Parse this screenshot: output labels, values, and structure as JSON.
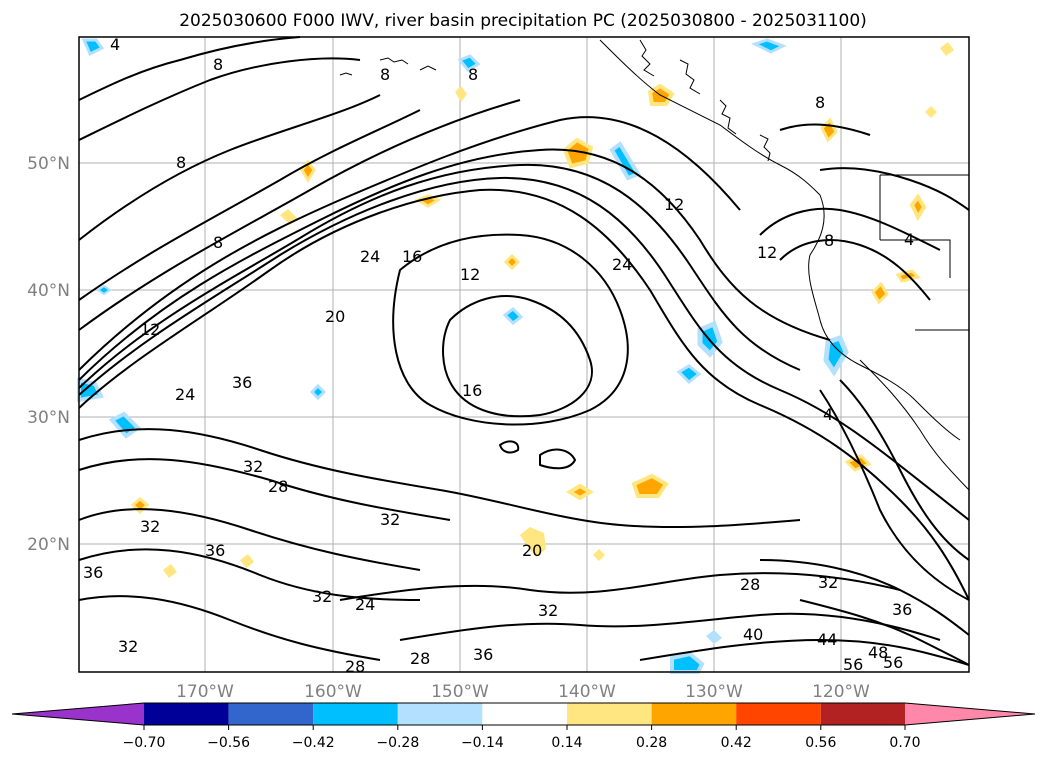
{
  "title": "2025030600 F000 IWV, river basin precipitation PC (2025030800 - 2025031100)",
  "map": {
    "lat_labels": [
      "50°N",
      "40°N",
      "30°N",
      "20°N"
    ],
    "lon_labels": [
      "170°W",
      "160°W",
      "150°W",
      "140°W",
      "130°W",
      "120°W"
    ],
    "contour_labels": [
      "4",
      "8",
      "8",
      "8",
      "8",
      "8",
      "8",
      "8",
      "4",
      "4",
      "12",
      "12",
      "12",
      "12",
      "16",
      "16",
      "20",
      "20",
      "24",
      "24",
      "24",
      "24",
      "28",
      "28",
      "28",
      "28",
      "32",
      "32",
      "32",
      "32",
      "32",
      "32",
      "32",
      "36",
      "36",
      "36",
      "36",
      "36",
      "40",
      "44",
      "48",
      "56",
      "56"
    ],
    "gridlines": true
  },
  "colorbar": {
    "ticks": [
      "−0.70",
      "−0.56",
      "−0.42",
      "−0.28",
      "−0.14",
      "0.14",
      "0.28",
      "0.42",
      "0.56",
      "0.70"
    ],
    "colors": [
      "#9933cc",
      "#000099",
      "#3366cc",
      "#00bfff",
      "#b3e0ff",
      "#ffffff",
      "#ffe680",
      "#ffa500",
      "#ff4500",
      "#b22222",
      "#ff88aa"
    ],
    "extend": "both"
  }
}
